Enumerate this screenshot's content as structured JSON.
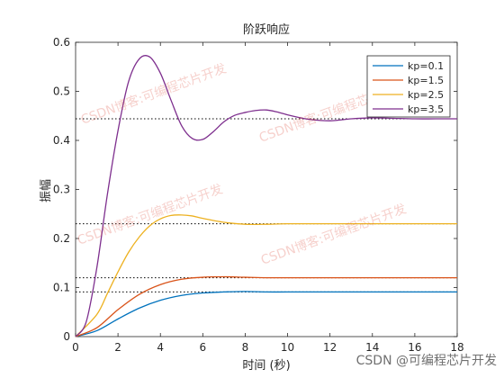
{
  "chart_data": {
    "type": "line",
    "title": "阶跃响应",
    "xlabel": "时间 (秒)",
    "ylabel": "振幅",
    "xlim": [
      0,
      18
    ],
    "ylim": [
      0,
      0.6
    ],
    "xticks": [
      0,
      2,
      4,
      6,
      8,
      10,
      12,
      14,
      16,
      18
    ],
    "yticks": [
      0,
      0.1,
      0.2,
      0.3,
      0.4,
      0.5,
      0.6
    ],
    "legend_position": "top-right",
    "grid": false,
    "series": [
      {
        "name": "kp=0.1",
        "color": "#0072BD",
        "final_value": 0.091,
        "x": [
          0,
          1,
          2,
          3,
          4,
          5,
          6,
          7,
          8,
          9,
          10,
          12,
          14,
          16,
          18
        ],
        "y": [
          0,
          0.012,
          0.036,
          0.058,
          0.074,
          0.084,
          0.089,
          0.091,
          0.092,
          0.091,
          0.091,
          0.091,
          0.091,
          0.091,
          0.091
        ]
      },
      {
        "name": "kp=1.5",
        "color": "#D95319",
        "final_value": 0.12,
        "x": [
          0,
          1,
          2,
          3,
          4,
          5,
          6,
          7,
          8,
          9,
          10,
          12,
          14,
          16,
          18
        ],
        "y": [
          0,
          0.018,
          0.055,
          0.086,
          0.106,
          0.117,
          0.121,
          0.122,
          0.121,
          0.12,
          0.12,
          0.12,
          0.12,
          0.12,
          0.12
        ]
      },
      {
        "name": "kp=2.5",
        "color": "#EDB120",
        "final_value": 0.23,
        "x": [
          0,
          1,
          1.5,
          2,
          2.5,
          3,
          3.5,
          4,
          4.5,
          5,
          5.5,
          6,
          7,
          8,
          9,
          10,
          12,
          14,
          16,
          18
        ],
        "y": [
          0,
          0.045,
          0.088,
          0.132,
          0.172,
          0.203,
          0.226,
          0.24,
          0.247,
          0.248,
          0.246,
          0.241,
          0.233,
          0.229,
          0.229,
          0.23,
          0.23,
          0.23,
          0.23,
          0.23
        ]
      },
      {
        "name": "kp=3.5",
        "color": "#7E2F8E",
        "final_value": 0.444,
        "x": [
          0,
          0.5,
          1,
          1.5,
          2,
          2.5,
          3,
          3.5,
          4,
          4.5,
          5,
          5.5,
          6,
          6.5,
          7,
          7.5,
          8,
          8.5,
          9,
          9.5,
          10,
          10.5,
          11,
          12,
          13,
          14,
          15,
          16,
          17,
          18
        ],
        "y": [
          0,
          0.03,
          0.14,
          0.29,
          0.42,
          0.52,
          0.566,
          0.57,
          0.537,
          0.482,
          0.43,
          0.404,
          0.402,
          0.418,
          0.438,
          0.451,
          0.457,
          0.461,
          0.462,
          0.458,
          0.452,
          0.447,
          0.443,
          0.44,
          0.444,
          0.446,
          0.445,
          0.444,
          0.444,
          0.444
        ]
      }
    ]
  },
  "watermark": {
    "overlay_text": "CSDN博客:可编程芯片开发",
    "footer_text": "CSDN @可编程芯片开发"
  }
}
